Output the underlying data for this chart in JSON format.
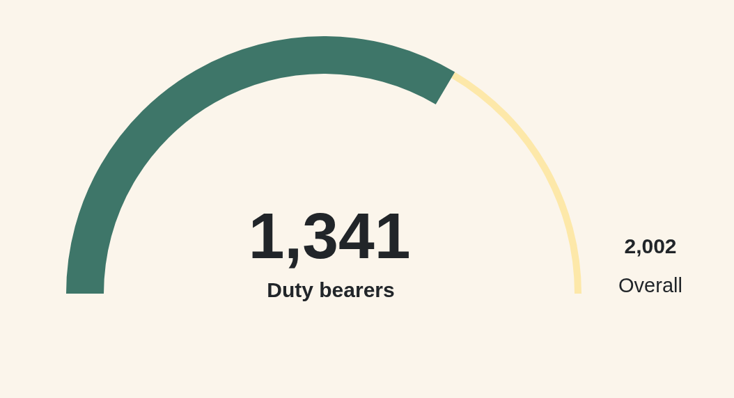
{
  "chart_data": {
    "type": "other",
    "categories": [
      "Duty bearers",
      "Overall"
    ],
    "values": [
      1341,
      2002
    ],
    "colors": [
      "#3e7669",
      "#fde8a9"
    ],
    "value_labels": [
      "1,341",
      "2,002"
    ]
  }
}
